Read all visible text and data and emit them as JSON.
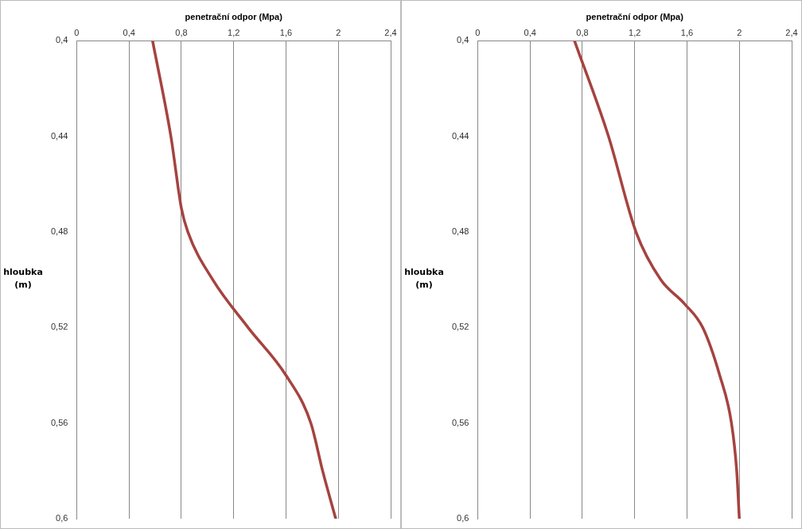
{
  "chart_data": [
    {
      "type": "line",
      "xlabel": "penetrační odpor (Mpa)",
      "ylabel": "hloubka (m)",
      "xlim": [
        0,
        2.4
      ],
      "xticks": [
        {
          "value": 0,
          "label": "0"
        },
        {
          "value": 0.4,
          "label": "0,4"
        },
        {
          "value": 0.8,
          "label": "0,8"
        },
        {
          "value": 1.2,
          "label": "1,2"
        },
        {
          "value": 1.6,
          "label": "1,6"
        },
        {
          "value": 2,
          "label": "2"
        },
        {
          "value": 2.4,
          "label": "2,4"
        }
      ],
      "ylim": [
        0.6,
        0.4
      ],
      "yticks": [
        {
          "value": 0.4,
          "label": "0,4"
        },
        {
          "value": 0.44,
          "label": "0,44"
        },
        {
          "value": 0.48,
          "label": "0,48"
        },
        {
          "value": 0.52,
          "label": "0,52"
        },
        {
          "value": 0.56,
          "label": "0,56"
        },
        {
          "value": 0.6,
          "label": "0,6"
        }
      ],
      "grid": "x",
      "legend": false,
      "marker": "none",
      "series": [
        {
          "color": "#a5433f",
          "x": [
            0.58,
            0.72,
            0.8,
            0.85,
            1.04,
            1.31,
            1.6,
            1.79,
            1.88,
            1.98
          ],
          "values": [
            0.4,
            0.44,
            0.47,
            0.48,
            0.5,
            0.52,
            0.54,
            0.56,
            0.58,
            0.6
          ]
        }
      ]
    },
    {
      "type": "line",
      "xlabel": "penetrační odpor (Mpa)",
      "ylabel": "hloubka (m)",
      "xlim": [
        0,
        2.4
      ],
      "xticks": [
        {
          "value": 0,
          "label": "0"
        },
        {
          "value": 0.4,
          "label": "0,4"
        },
        {
          "value": 0.8,
          "label": "0,8"
        },
        {
          "value": 1.2,
          "label": "1,2"
        },
        {
          "value": 1.6,
          "label": "1,6"
        },
        {
          "value": 2,
          "label": "2"
        },
        {
          "value": 2.4,
          "label": "2,4"
        }
      ],
      "ylim": [
        0.6,
        0.4
      ],
      "yticks": [
        {
          "value": 0.4,
          "label": "0,4"
        },
        {
          "value": 0.44,
          "label": "0,44"
        },
        {
          "value": 0.48,
          "label": "0,48"
        },
        {
          "value": 0.52,
          "label": "0,52"
        },
        {
          "value": 0.56,
          "label": "0,56"
        },
        {
          "value": 0.6,
          "label": "0,6"
        }
      ],
      "grid": "x",
      "legend": false,
      "marker": "none",
      "series": [
        {
          "color": "#a5433f",
          "x": [
            0.74,
            1.0,
            1.21,
            1.4,
            1.58,
            1.72,
            1.85,
            1.94,
            1.98,
            2.0
          ],
          "values": [
            0.4,
            0.44,
            0.48,
            0.5,
            0.51,
            0.52,
            0.54,
            0.56,
            0.58,
            0.6
          ]
        }
      ]
    }
  ]
}
